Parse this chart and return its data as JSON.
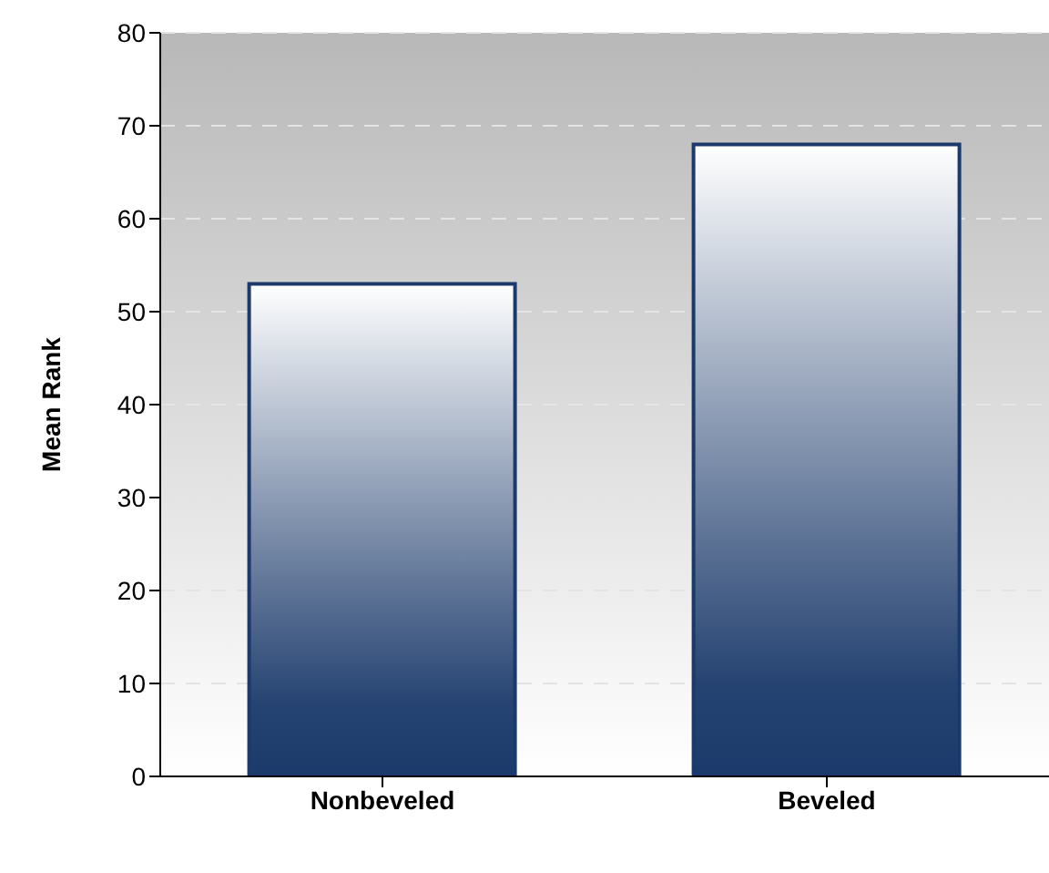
{
  "chart_data": {
    "type": "bar",
    "ylabel": "Mean Rank",
    "categories": [
      "Nonbeveled",
      "Beveled"
    ],
    "values": [
      53,
      68
    ],
    "color": "#1b3a6b",
    "ylim": [
      0,
      80
    ],
    "yticks": [
      0,
      10,
      20,
      30,
      40,
      50,
      60,
      70,
      80
    ],
    "grid": "y"
  }
}
